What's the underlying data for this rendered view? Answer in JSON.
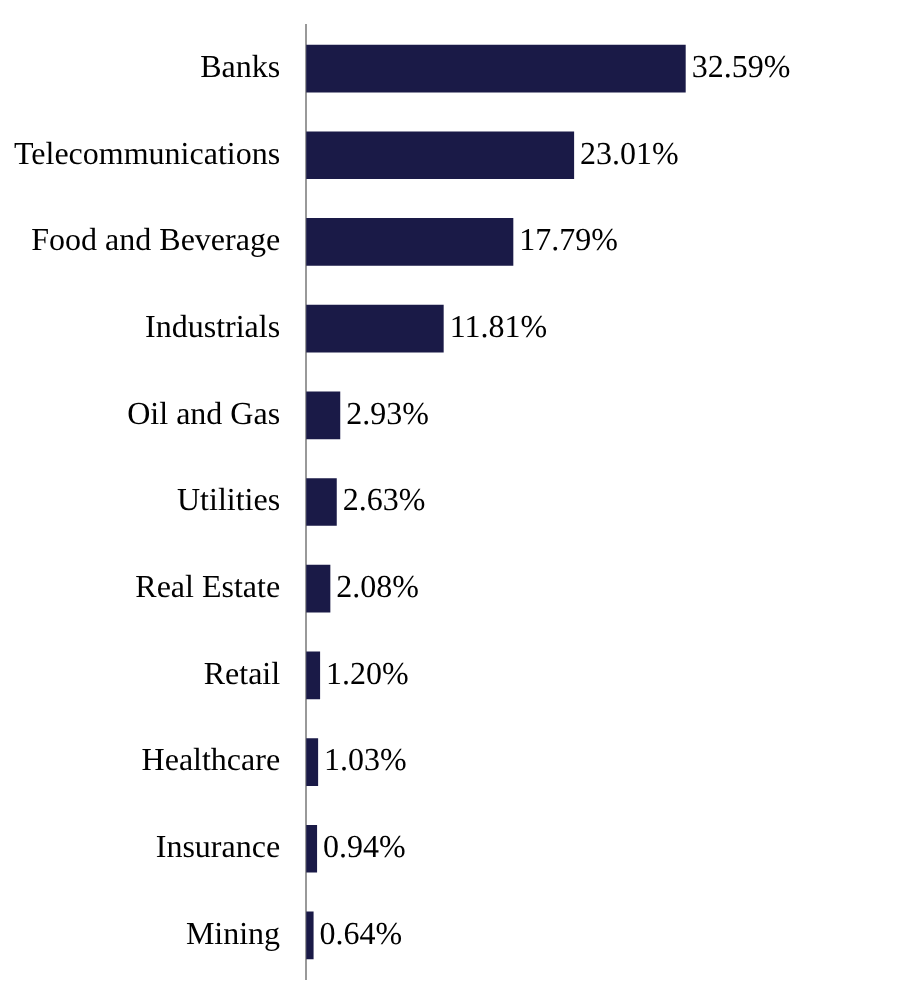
{
  "chart_data": {
    "type": "bar",
    "orientation": "horizontal",
    "categories": [
      "Banks",
      "Telecommunications",
      "Food and Beverage",
      "Industrials",
      "Oil and Gas",
      "Utilities",
      "Real Estate",
      "Retail",
      "Healthcare",
      "Insurance",
      "Mining"
    ],
    "values": [
      32.59,
      23.01,
      17.79,
      11.81,
      2.93,
      2.63,
      2.08,
      1.2,
      1.03,
      0.94,
      0.64
    ],
    "value_labels": [
      "32.59%",
      "23.01%",
      "17.79%",
      "11.81%",
      "2.93%",
      "2.63%",
      "2.08%",
      "1.20%",
      "1.03%",
      "0.94%",
      "0.64%"
    ],
    "color": "#1a1a47",
    "tick_labels": "y",
    "grid": false,
    "legend": false
  }
}
